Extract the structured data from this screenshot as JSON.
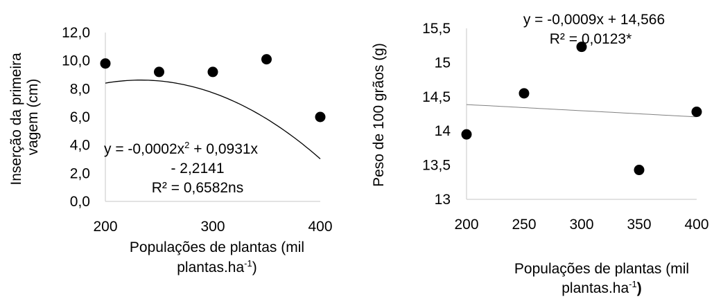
{
  "chart_data": [
    {
      "type": "scatter",
      "title": "",
      "xlabel": "Populações de plantas (mil plantas.ha-1)",
      "xlabel_lines": [
        "Populações de plantas (mil",
        "plantas.ha",
        "-1",
        ")"
      ],
      "ylabel": "Inserção da primeira vagem (cm)",
      "ylabel_lines": [
        "Inserção da primeira",
        "vagem (cm)"
      ],
      "xlim": [
        200,
        400
      ],
      "ylim": [
        0,
        12
      ],
      "x_ticks": [
        200,
        300,
        400
      ],
      "y_ticks": [
        "0,0",
        "2,0",
        "4,0",
        "6,0",
        "8,0",
        "10,0",
        "12,0"
      ],
      "y_tick_values": [
        0,
        2,
        4,
        6,
        8,
        10,
        12
      ],
      "grid": false,
      "series": [
        {
          "x": [
            200,
            250,
            300,
            350,
            400
          ],
          "y": [
            9.8,
            9.2,
            9.2,
            10.1,
            6.0
          ],
          "trendline": {
            "type": "polynomial",
            "coefficients": [
              -0.0002,
              0.0931,
              -2.2141
            ]
          }
        }
      ],
      "equation_lines": [
        "y = -0,0002x",
        "2",
        " + 0,0931x",
        "- 2,2141",
        "R² = 0,6582ns"
      ]
    },
    {
      "type": "scatter",
      "title": "",
      "xlabel": "Populações de plantas (mil plantas.ha-1)",
      "xlabel_lines": [
        "Populações de plantas (mil",
        "plantas.ha",
        "-1",
        ")"
      ],
      "ylabel": "Peso de 100 grãos (g)",
      "ylabel_lines": [
        "Peso de 100 grãos (g)"
      ],
      "xlim": [
        200,
        400
      ],
      "ylim": [
        13,
        15.5
      ],
      "x_ticks": [
        200,
        250,
        300,
        350,
        400
      ],
      "y_ticks": [
        "13",
        "13,5",
        "14",
        "14,5",
        "15",
        "15,5"
      ],
      "y_tick_values": [
        13,
        13.5,
        14,
        14.5,
        15,
        15.5
      ],
      "grid": false,
      "series": [
        {
          "x": [
            200,
            250,
            300,
            350,
            400
          ],
          "y": [
            13.95,
            14.55,
            15.23,
            13.43,
            14.28
          ],
          "trendline": {
            "type": "linear",
            "coefficients": [
              -0.0009,
              14.566
            ]
          }
        }
      ],
      "equation_lines": [
        "y = -0,0009x + 14,566",
        "R² = 0,0123*"
      ]
    }
  ]
}
